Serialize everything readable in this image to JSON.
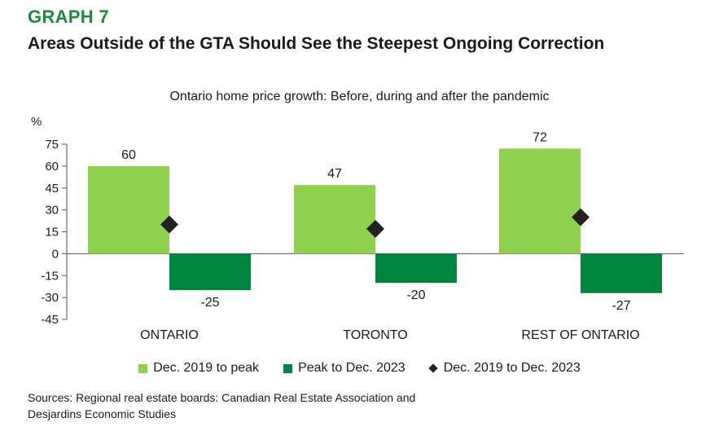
{
  "header": {
    "graph_label": "GRAPH 7",
    "title": "Areas Outside of the GTA Should See the Steepest Ongoing Correction"
  },
  "chart_data": {
    "type": "bar",
    "title": "Ontario home price growth: Before, during and after the pandemic",
    "ylabel": "%",
    "ylim": [
      -45,
      75
    ],
    "yticks": [
      75,
      60,
      45,
      30,
      15,
      0,
      -15,
      -30,
      -45
    ],
    "categories": [
      "ONTARIO",
      "TORONTO",
      "REST OF ONTARIO"
    ],
    "series": [
      {
        "name": "Dec. 2019 to peak",
        "kind": "bar",
        "color": "#8fd14f",
        "values": [
          60,
          47,
          72
        ],
        "labels": [
          "60",
          "47",
          "72"
        ]
      },
      {
        "name": "Peak to Dec. 2023",
        "kind": "bar",
        "color": "#00853f",
        "values": [
          -25,
          -20,
          -27
        ],
        "labels": [
          "-25",
          "-20",
          "-27"
        ]
      },
      {
        "name": "Dec. 2019 to Dec. 2023",
        "kind": "marker",
        "color": "#222222",
        "values": [
          20,
          17,
          25
        ]
      }
    ],
    "legend_position": "bottom",
    "grid": false
  },
  "sources": {
    "line1": "Sources: Regional real estate boards: Canadian Real Estate Association and",
    "line2": "Desjardins Economic Studies"
  }
}
